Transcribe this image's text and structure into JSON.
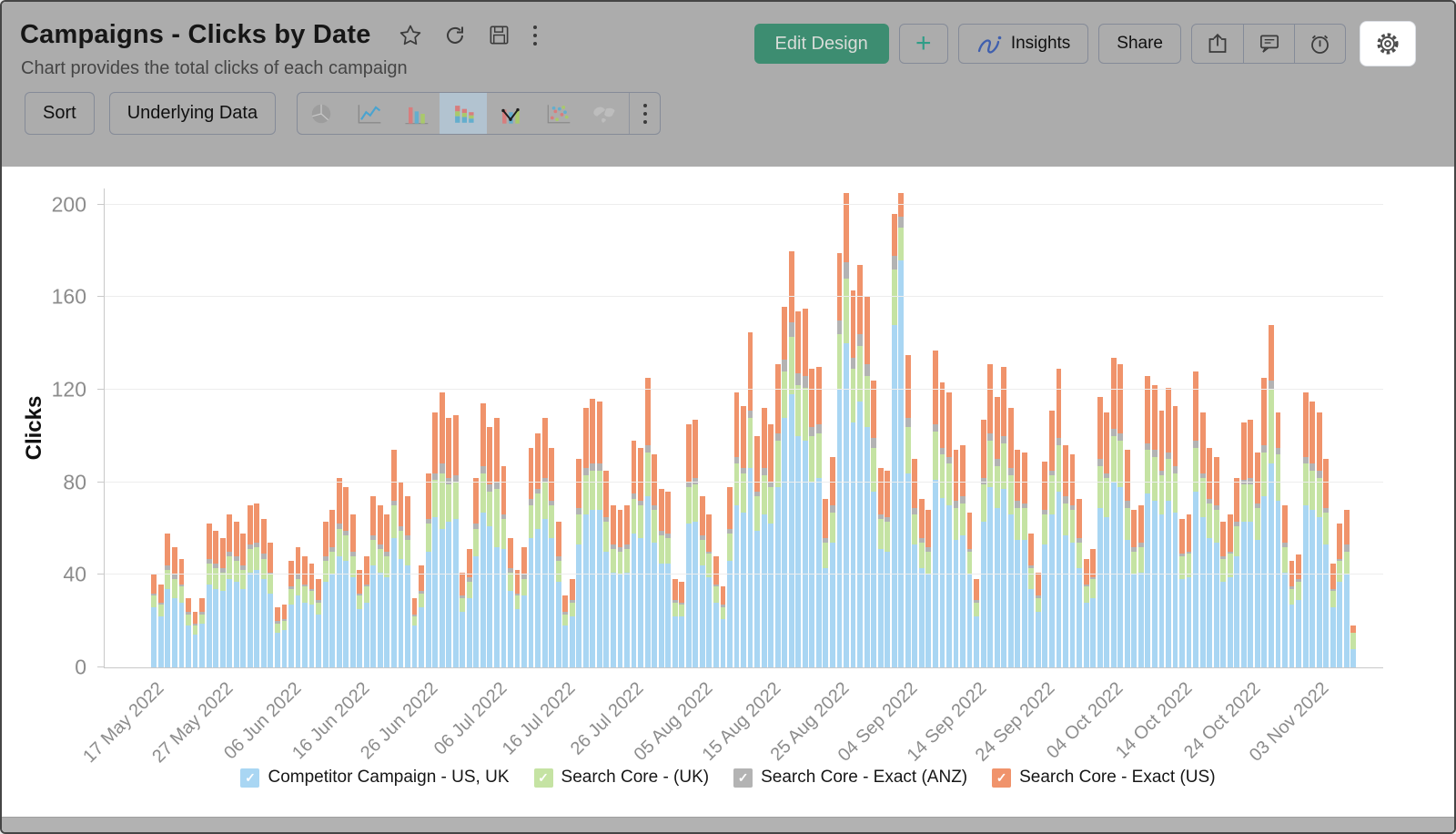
{
  "header": {
    "title": "Campaigns - Clicks by Date",
    "subtitle": "Chart provides the total clicks of each campaign",
    "title_icons": [
      "star",
      "refresh",
      "save",
      "more"
    ],
    "buttons": {
      "edit_design": "Edit Design",
      "add": "+",
      "insights": "Insights",
      "share": "Share"
    },
    "icon_buttons": [
      "export",
      "comment",
      "schedule",
      "settings"
    ]
  },
  "toolbar": {
    "sort": "Sort",
    "underlying_data": "Underlying Data",
    "chart_types": [
      "pie",
      "line",
      "bar",
      "stacked-bar",
      "bar-line-combo",
      "scatter",
      "map"
    ],
    "selected_chart_type": "stacked-bar"
  },
  "colors": {
    "header_bg": "#acacac",
    "edit_design_bg": "#3d8d71",
    "accent_teal": "#2f9d87",
    "series_blue": "#a9d6f3",
    "series_green": "#c5e3a3",
    "series_gray": "#b3b3b3",
    "series_orange": "#f0936b"
  },
  "chart_data": {
    "type": "stacked_bar",
    "title": "Campaigns - Clicks by Date",
    "ylabel": "Clicks",
    "ylim": [
      0,
      200
    ],
    "ylim_render": 207,
    "yticks": [
      0,
      40,
      80,
      120,
      160,
      200
    ],
    "grid": true,
    "legend_position": "bottom",
    "x_unit": "day",
    "x_start": "17 May 2022",
    "x_end": "08 Nov 2022",
    "n_bars": 176,
    "x_tick_indices": [
      0,
      10,
      20,
      30,
      40,
      50,
      60,
      70,
      80,
      90,
      100,
      110,
      120,
      130,
      140,
      150,
      160,
      170
    ],
    "x_tick_labels": [
      "17 May 2022",
      "27 May 2022",
      "06 Jun 2022",
      "16 Jun 2022",
      "26 Jun 2022",
      "06 Jul 2022",
      "16 Jul 2022",
      "26 Jul 2022",
      "05 Aug 2022",
      "15 Aug 2022",
      "25 Aug 2022",
      "04 Sep 2022",
      "14 Sep 2022",
      "24 Sep 2022",
      "04 Oct 2022",
      "14 Oct 2022",
      "24 Oct 2022",
      "03 Nov 2022"
    ],
    "series": [
      {
        "name": "Competitor Campaign - US, UK",
        "color": "#a9d6f3"
      },
      {
        "name": "Search Core - (UK)",
        "color": "#c5e3a3"
      },
      {
        "name": "Search Core - Exact (ANZ)",
        "color": "#b3b3b3"
      },
      {
        "name": "Search Core - Exact (US)",
        "color": "#f0936b"
      }
    ],
    "values_order": "per day: [Competitor Campaign - US UK, Search Core - (UK), Search Core - Exact (ANZ), Search Core - Exact (US)]",
    "values": [
      [
        26,
        5,
        1,
        8
      ],
      [
        22,
        5,
        1,
        8
      ],
      [
        34,
        8,
        2,
        14
      ],
      [
        30,
        8,
        2,
        12
      ],
      [
        28,
        7,
        1,
        11
      ],
      [
        18,
        5,
        1,
        6
      ],
      [
        14,
        4,
        1,
        5
      ],
      [
        19,
        4,
        1,
        6
      ],
      [
        36,
        9,
        2,
        15
      ],
      [
        34,
        9,
        2,
        14
      ],
      [
        33,
        8,
        2,
        13
      ],
      [
        38,
        10,
        2,
        16
      ],
      [
        37,
        9,
        2,
        15
      ],
      [
        34,
        8,
        2,
        14
      ],
      [
        41,
        10,
        2,
        17
      ],
      [
        42,
        10,
        2,
        17
      ],
      [
        38,
        9,
        2,
        15
      ],
      [
        32,
        8,
        1,
        13
      ],
      [
        15,
        4,
        1,
        6
      ],
      [
        16,
        4,
        1,
        6
      ],
      [
        27,
        7,
        1,
        11
      ],
      [
        31,
        7,
        2,
        12
      ],
      [
        28,
        7,
        1,
        12
      ],
      [
        27,
        6,
        1,
        11
      ],
      [
        23,
        5,
        1,
        9
      ],
      [
        37,
        9,
        2,
        15
      ],
      [
        40,
        10,
        2,
        16
      ],
      [
        48,
        12,
        2,
        20
      ],
      [
        46,
        11,
        2,
        19
      ],
      [
        39,
        9,
        2,
        16
      ],
      [
        25,
        6,
        1,
        10
      ],
      [
        28,
        7,
        1,
        12
      ],
      [
        44,
        11,
        2,
        17
      ],
      [
        41,
        10,
        2,
        17
      ],
      [
        39,
        9,
        2,
        16
      ],
      [
        56,
        14,
        2,
        22
      ],
      [
        47,
        12,
        2,
        19
      ],
      [
        44,
        11,
        2,
        17
      ],
      [
        18,
        4,
        1,
        7
      ],
      [
        26,
        6,
        1,
        11
      ],
      [
        50,
        12,
        2,
        20
      ],
      [
        65,
        16,
        3,
        26
      ],
      [
        60,
        24,
        4,
        31
      ],
      [
        63,
        16,
        3,
        26
      ],
      [
        64,
        16,
        3,
        26
      ],
      [
        24,
        6,
        1,
        10
      ],
      [
        30,
        7,
        2,
        12
      ],
      [
        48,
        12,
        2,
        20
      ],
      [
        67,
        17,
        3,
        27
      ],
      [
        61,
        15,
        3,
        25
      ],
      [
        52,
        25,
        3,
        28
      ],
      [
        51,
        13,
        2,
        21
      ],
      [
        33,
        8,
        2,
        13
      ],
      [
        25,
        6,
        1,
        10
      ],
      [
        31,
        7,
        2,
        12
      ],
      [
        56,
        14,
        3,
        22
      ],
      [
        60,
        15,
        2,
        24
      ],
      [
        64,
        16,
        2,
        26
      ],
      [
        56,
        14,
        2,
        23
      ],
      [
        37,
        9,
        2,
        15
      ],
      [
        18,
        5,
        1,
        7
      ],
      [
        22,
        6,
        1,
        9
      ],
      [
        53,
        13,
        3,
        21
      ],
      [
        66,
        17,
        3,
        26
      ],
      [
        68,
        17,
        3,
        28
      ],
      [
        68,
        17,
        3,
        27
      ],
      [
        50,
        13,
        2,
        20
      ],
      [
        41,
        10,
        2,
        17
      ],
      [
        40,
        10,
        2,
        16
      ],
      [
        41,
        10,
        2,
        17
      ],
      [
        58,
        15,
        2,
        23
      ],
      [
        56,
        14,
        2,
        23
      ],
      [
        74,
        19,
        3,
        29
      ],
      [
        54,
        14,
        2,
        22
      ],
      [
        45,
        12,
        2,
        18
      ],
      [
        45,
        11,
        2,
        18
      ],
      [
        22,
        6,
        1,
        9
      ],
      [
        22,
        5,
        1,
        9
      ],
      [
        62,
        16,
        2,
        25
      ],
      [
        63,
        16,
        3,
        25
      ],
      [
        44,
        11,
        2,
        17
      ],
      [
        39,
        10,
        1,
        16
      ],
      [
        28,
        7,
        1,
        12
      ],
      [
        21,
        5,
        1,
        8
      ],
      [
        46,
        12,
        2,
        18
      ],
      [
        70,
        18,
        3,
        28
      ],
      [
        67,
        17,
        2,
        27
      ],
      [
        86,
        22,
        3,
        34
      ],
      [
        59,
        15,
        2,
        24
      ],
      [
        66,
        17,
        3,
        26
      ],
      [
        62,
        16,
        2,
        25
      ],
      [
        78,
        20,
        3,
        30
      ],
      [
        108,
        20,
        5,
        23
      ],
      [
        118,
        25,
        6,
        31
      ],
      [
        100,
        22,
        5,
        27
      ],
      [
        98,
        23,
        5,
        29
      ],
      [
        80,
        20,
        4,
        25
      ],
      [
        82,
        19,
        4,
        25
      ],
      [
        43,
        11,
        2,
        17
      ],
      [
        54,
        13,
        3,
        21
      ],
      [
        120,
        24,
        6,
        29
      ],
      [
        140,
        28,
        7,
        30
      ],
      [
        106,
        23,
        5,
        29
      ],
      [
        115,
        24,
        5,
        30
      ],
      [
        104,
        22,
        5,
        29
      ],
      [
        76,
        19,
        4,
        25
      ],
      [
        51,
        13,
        2,
        20
      ],
      [
        50,
        13,
        2,
        20
      ],
      [
        148,
        24,
        6,
        18
      ],
      [
        176,
        14,
        5,
        10
      ],
      [
        84,
        20,
        4,
        27
      ],
      [
        53,
        13,
        3,
        21
      ],
      [
        43,
        11,
        2,
        17
      ],
      [
        40,
        10,
        2,
        16
      ],
      [
        81,
        21,
        3,
        32
      ],
      [
        73,
        19,
        3,
        28
      ],
      [
        70,
        18,
        3,
        28
      ],
      [
        55,
        14,
        3,
        22
      ],
      [
        57,
        14,
        3,
        22
      ],
      [
        40,
        10,
        1,
        16
      ],
      [
        22,
        6,
        1,
        9
      ],
      [
        63,
        16,
        3,
        25
      ],
      [
        78,
        20,
        3,
        30
      ],
      [
        69,
        18,
        3,
        27
      ],
      [
        77,
        20,
        3,
        30
      ],
      [
        66,
        17,
        3,
        26
      ],
      [
        55,
        14,
        3,
        22
      ],
      [
        55,
        14,
        2,
        22
      ],
      [
        34,
        9,
        1,
        14
      ],
      [
        24,
        6,
        1,
        10
      ],
      [
        53,
        13,
        2,
        21
      ],
      [
        66,
        17,
        2,
        26
      ],
      [
        76,
        20,
        3,
        30
      ],
      [
        57,
        14,
        3,
        22
      ],
      [
        54,
        14,
        2,
        22
      ],
      [
        43,
        11,
        2,
        17
      ],
      [
        28,
        7,
        1,
        11
      ],
      [
        30,
        8,
        1,
        12
      ],
      [
        69,
        18,
        3,
        27
      ],
      [
        65,
        17,
        2,
        26
      ],
      [
        80,
        20,
        3,
        31
      ],
      [
        78,
        20,
        3,
        30
      ],
      [
        55,
        14,
        3,
        22
      ],
      [
        40,
        10,
        2,
        16
      ],
      [
        41,
        11,
        2,
        16
      ],
      [
        75,
        19,
        3,
        29
      ],
      [
        72,
        19,
        3,
        28
      ],
      [
        66,
        17,
        2,
        26
      ],
      [
        72,
        18,
        3,
        28
      ],
      [
        67,
        17,
        3,
        26
      ],
      [
        38,
        10,
        1,
        15
      ],
      [
        39,
        10,
        1,
        16
      ],
      [
        76,
        19,
        3,
        30
      ],
      [
        65,
        17,
        2,
        26
      ],
      [
        56,
        15,
        2,
        22
      ],
      [
        54,
        14,
        2,
        21
      ],
      [
        37,
        10,
        1,
        15
      ],
      [
        39,
        10,
        1,
        16
      ],
      [
        48,
        13,
        2,
        19
      ],
      [
        63,
        16,
        2,
        25
      ],
      [
        63,
        16,
        3,
        25
      ],
      [
        55,
        14,
        2,
        22
      ],
      [
        74,
        19,
        3,
        29
      ],
      [
        88,
        32,
        4,
        24
      ],
      [
        72,
        20,
        3,
        15
      ],
      [
        41,
        11,
        2,
        16
      ],
      [
        27,
        7,
        1,
        11
      ],
      [
        29,
        8,
        1,
        11
      ],
      [
        70,
        18,
        3,
        28
      ],
      [
        68,
        17,
        3,
        27
      ],
      [
        65,
        17,
        3,
        25
      ],
      [
        53,
        14,
        2,
        21
      ],
      [
        26,
        7,
        1,
        11
      ],
      [
        37,
        9,
        1,
        15
      ],
      [
        40,
        10,
        3,
        15
      ],
      [
        8,
        7,
        0,
        3
      ]
    ]
  }
}
